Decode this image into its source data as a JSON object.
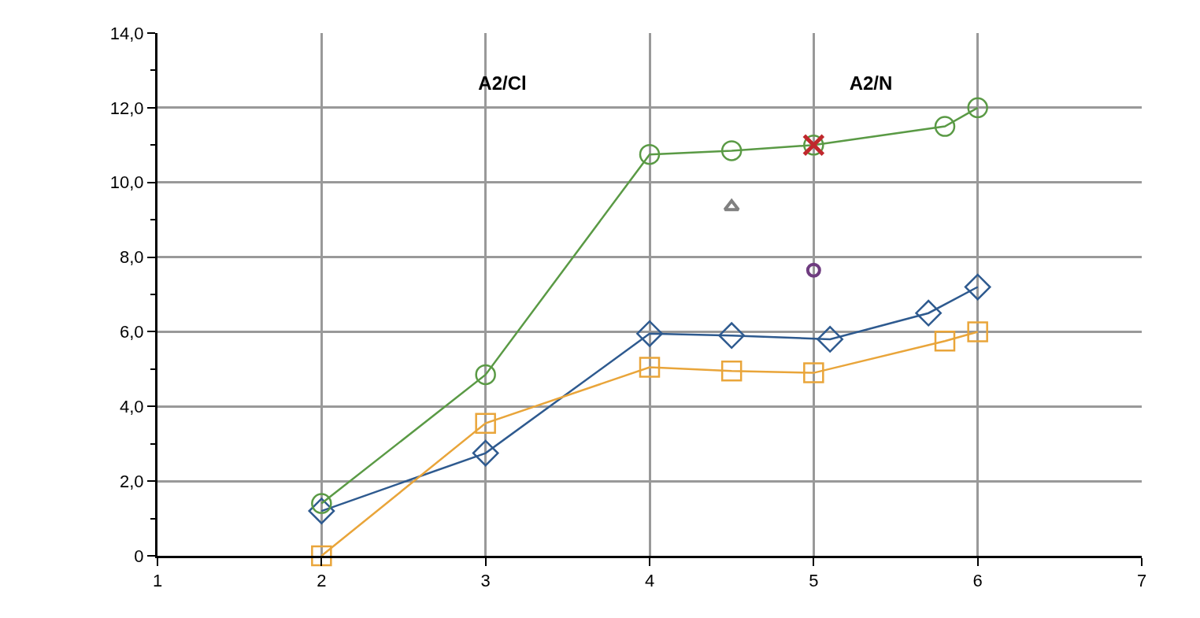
{
  "chart_data": {
    "type": "line",
    "xlim": [
      1,
      7
    ],
    "ylim": [
      0,
      14
    ],
    "xticks": [
      1,
      2,
      3,
      4,
      5,
      6,
      7
    ],
    "yticks": [
      0,
      {
        "value": 1,
        "label": null
      },
      {
        "value": 2,
        "label": "2,0"
      },
      {
        "value": 3,
        "label": null
      },
      {
        "value": 4,
        "label": "4,0"
      },
      {
        "value": 5,
        "label": null
      },
      {
        "value": 6,
        "label": "6,0"
      },
      {
        "value": 7,
        "label": null
      },
      {
        "value": 8,
        "label": "8,0"
      },
      {
        "value": 9,
        "label": null
      },
      {
        "value": 10,
        "label": "10,0"
      },
      {
        "value": 11,
        "label": null
      },
      {
        "value": 12,
        "label": "12,0"
      },
      {
        "value": 13,
        "label": null
      },
      {
        "value": 14,
        "label": "14,0"
      }
    ],
    "grid": true,
    "annotations": [
      "A2/Cl",
      "A2/N"
    ],
    "series": [
      {
        "color": "#2e5a8f",
        "marker": "diamond",
        "x": [
          2,
          3,
          4,
          4.5,
          5.1,
          5.7,
          6
        ],
        "values": [
          1.2,
          2.75,
          5.95,
          5.9,
          5.8,
          6.5,
          7.2
        ]
      },
      {
        "color": "#5a9a45",
        "marker": "circle",
        "x": [
          2,
          3,
          4,
          4.5,
          5,
          5.8,
          6
        ],
        "values": [
          1.4,
          4.85,
          10.75,
          10.85,
          11.0,
          11.5,
          12.0
        ]
      },
      {
        "color": "#e9a53a",
        "marker": "square",
        "x": [
          2,
          3,
          4,
          4.5,
          5,
          5.8,
          6
        ],
        "values": [
          0,
          3.55,
          5.05,
          4.95,
          4.9,
          5.75,
          6.0
        ]
      },
      {
        "type": "scatter",
        "color": "#808080",
        "marker": "triangle",
        "x": [
          4.5
        ],
        "values": [
          9.35
        ]
      },
      {
        "type": "scatter",
        "color": "#6f3c80",
        "marker": "circle",
        "x": [
          5
        ],
        "values": [
          7.65
        ]
      },
      {
        "type": "scatter",
        "color": "#c0282d",
        "marker": "cross",
        "x": [
          5
        ],
        "values": [
          11.0
        ]
      }
    ]
  }
}
